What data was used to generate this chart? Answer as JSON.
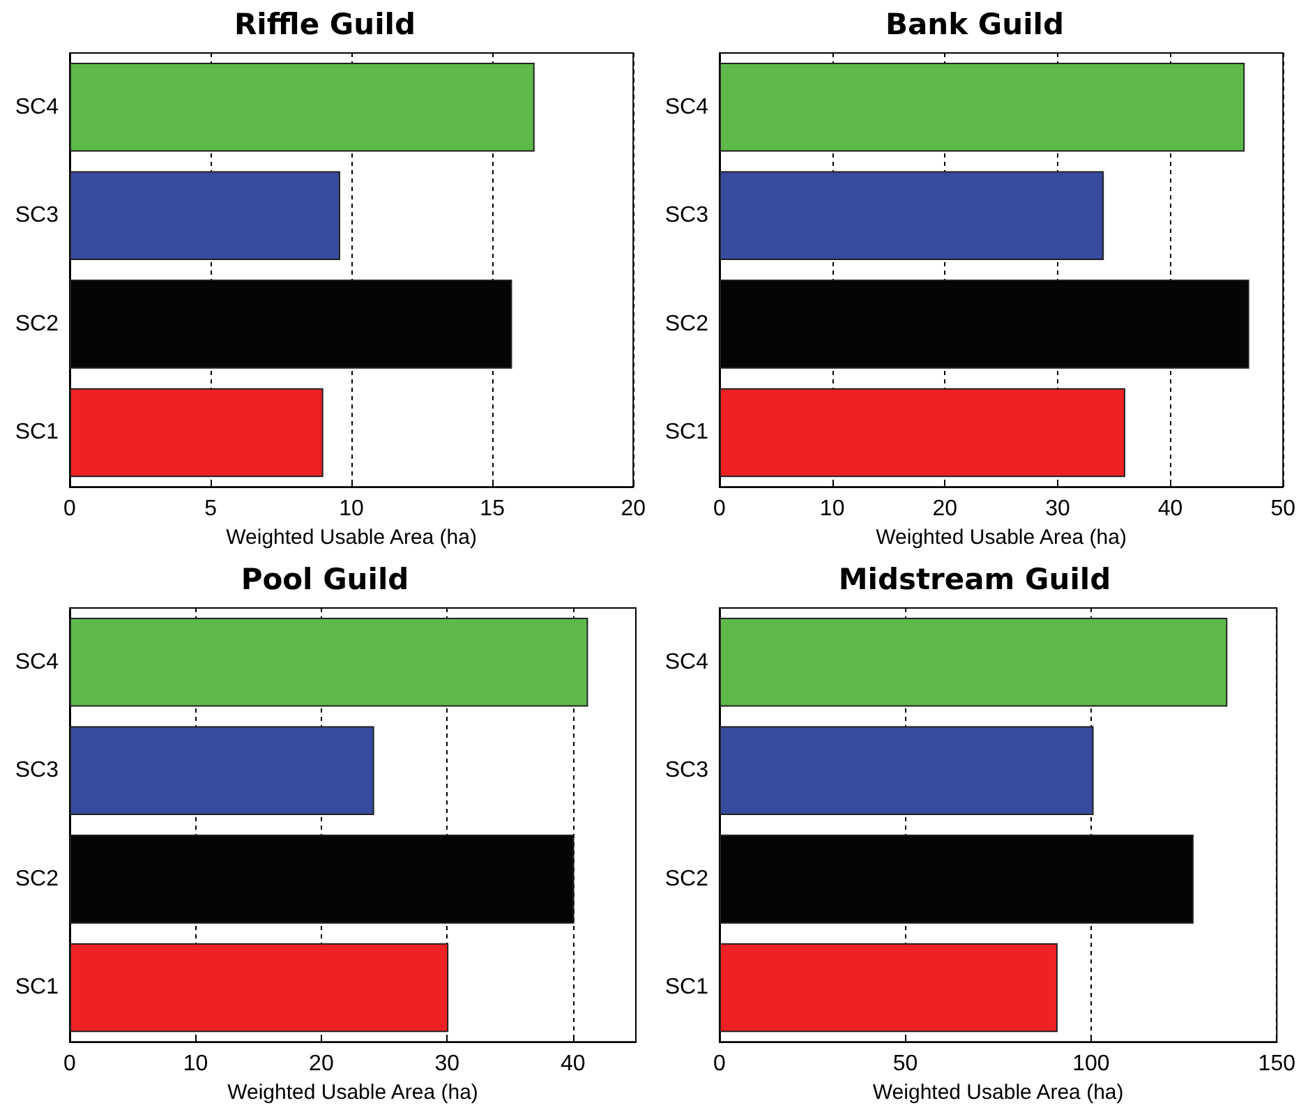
{
  "chart_data": [
    {
      "type": "bar",
      "orientation": "horizontal",
      "title": "Riffle Guild",
      "xlabel": "Weighted Usable Area (ha)",
      "categories": [
        "SC4",
        "SC3",
        "SC2",
        "SC1"
      ],
      "values": [
        16.5,
        9.6,
        15.7,
        9.0
      ],
      "colors": [
        "#5dba4a",
        "#364a9e",
        "#050505",
        "#ee2225"
      ],
      "xlim": [
        0,
        20
      ],
      "xticks": [
        0,
        5,
        10,
        15,
        20
      ],
      "grid": "x"
    },
    {
      "type": "bar",
      "orientation": "horizontal",
      "title": "Bank Guild",
      "xlabel": "Weighted Usable Area (ha)",
      "categories": [
        "SC4",
        "SC3",
        "SC2",
        "SC1"
      ],
      "values": [
        46.6,
        34.1,
        47.0,
        36.0
      ],
      "colors": [
        "#5dba4a",
        "#364a9e",
        "#050505",
        "#ee2225"
      ],
      "xlim": [
        0,
        50
      ],
      "xticks": [
        0,
        10,
        20,
        30,
        40,
        50
      ],
      "grid": "x"
    },
    {
      "type": "bar",
      "orientation": "horizontal",
      "title": "Pool Guild",
      "xlabel": "Weighted Usable Area (ha)",
      "categories": [
        "SC4",
        "SC3",
        "SC2",
        "SC1"
      ],
      "values": [
        41.2,
        24.2,
        40.1,
        30.1
      ],
      "colors": [
        "#5dba4a",
        "#364a9e",
        "#050505",
        "#ee2225"
      ],
      "xlim": [
        0,
        45
      ],
      "xticks": [
        0,
        10,
        20,
        30,
        40
      ],
      "grid": "x"
    },
    {
      "type": "bar",
      "orientation": "horizontal",
      "title": "Midstream Guild",
      "xlabel": "Weighted Usable Area (ha)",
      "categories": [
        "SC4",
        "SC3",
        "SC2",
        "SC1"
      ],
      "values": [
        136.7,
        100.7,
        127.6,
        91.0
      ],
      "colors": [
        "#5dba4a",
        "#364a9e",
        "#050505",
        "#ee2225"
      ],
      "xlim": [
        0,
        150
      ],
      "xticks": [
        0,
        50,
        100,
        150
      ],
      "grid": "x"
    }
  ]
}
